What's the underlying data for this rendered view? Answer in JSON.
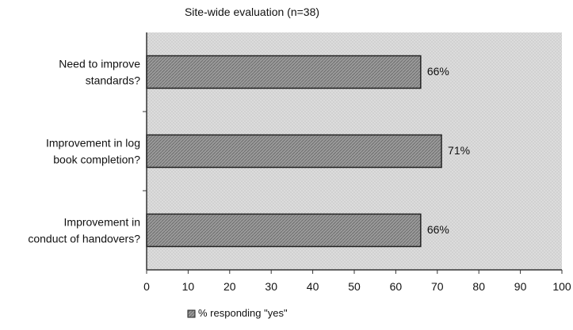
{
  "chart_data": {
    "type": "bar",
    "orientation": "horizontal",
    "title": "Site-wide evaluation (n=38)",
    "categories": [
      [
        "Need to improve",
        "standards?"
      ],
      [
        "Improvement in log",
        "book completion?"
      ],
      [
        "Improvement in",
        "conduct of handovers?"
      ]
    ],
    "series": [
      {
        "name": "% responding \"yes\"",
        "values": [
          66,
          71,
          66
        ],
        "labels": [
          "66%",
          "71%",
          "66%"
        ]
      }
    ],
    "xlim": [
      0,
      100
    ],
    "xticks": [
      0,
      10,
      20,
      30,
      40,
      50,
      60,
      70,
      80,
      90,
      100
    ],
    "grid": false,
    "legend": "bottom",
    "colors": {
      "plot_bg": "#d9d9d9",
      "bar_fill": "#8c8c8c",
      "bar_stroke": "#222222",
      "axis": "#333333"
    }
  }
}
